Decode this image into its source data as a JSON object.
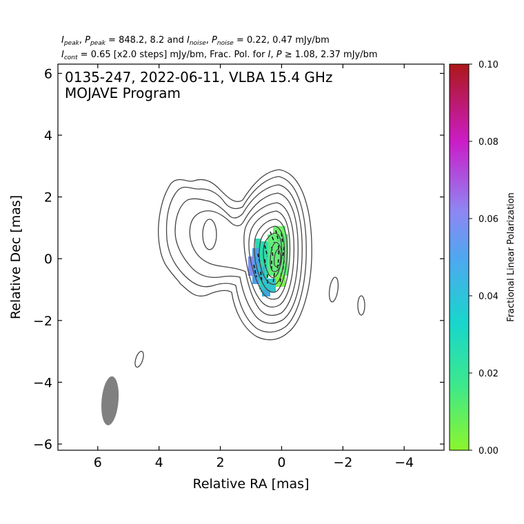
{
  "chart_data": {
    "type": "contour",
    "header": {
      "line1": {
        "i_sym": "I",
        "i_sub": "peak",
        "sep": ", ",
        "p_sym": "P",
        "p_sub": "peak",
        "mid": " = 848.2, 8.2 and ",
        "i2_sym": "I",
        "i2_sub": "noise",
        "sep2": ", ",
        "p2_sym": "P",
        "p2_sub": "noise",
        "tail": " = 0.22, 0.47 mJy/bm"
      },
      "line2": {
        "i_sym": "I",
        "i_sub": "cont",
        "mid": " = 0.65 [x2.0 steps] mJy/bm, Frac. Pol. for ",
        "i2_sym": "I",
        "sep": ", ",
        "p_sym": "P",
        "tail": " ≥  1.08, 2.37 mJy/bm"
      }
    },
    "title_line1": "0135-247, 2022-06-11, VLBA 15.4 GHz",
    "title_line2": "MOJAVE Program",
    "xlabel": "Relative RA [mas]",
    "ylabel": "Relative Dec [mas]",
    "xlim": [
      7.3,
      -5.3
    ],
    "ylim": [
      -6.2,
      6.3
    ],
    "x_ticks": [
      6,
      4,
      2,
      0,
      -2,
      -4
    ],
    "x_tick_labels": [
      "6",
      "4",
      "2",
      "0",
      "−2",
      "−4"
    ],
    "y_ticks": [
      6,
      4,
      2,
      0,
      -2,
      -4,
      -6
    ],
    "y_tick_labels": [
      "6",
      "4",
      "2",
      "0",
      "−2",
      "−4",
      "−6"
    ],
    "contour_levels_mjy": [
      0.65,
      1.3,
      2.6,
      5.2,
      10.4,
      20.8,
      41.6,
      83.2,
      166.4,
      332.8,
      665.6
    ],
    "colorbar": {
      "label": "Fractional Linear Polarization",
      "range": [
        0.0,
        0.1
      ],
      "ticks": [
        0.0,
        0.02,
        0.04,
        0.06,
        0.08,
        0.1
      ],
      "tick_labels": [
        "0.00",
        "0.02",
        "0.04",
        "0.06",
        "0.08",
        "0.10"
      ],
      "colors": [
        "#8cf52c",
        "#3ce88d",
        "#18d6cc",
        "#4fa7f0",
        "#8f86f3",
        "#cb1cc7",
        "#ac1818"
      ]
    },
    "beam": {
      "x": 5.6,
      "y": -4.6,
      "major_mas": 1.6,
      "minor_mas": 0.55,
      "pa_deg": -5,
      "color": "#808080"
    },
    "contour_color": "#444444"
  }
}
